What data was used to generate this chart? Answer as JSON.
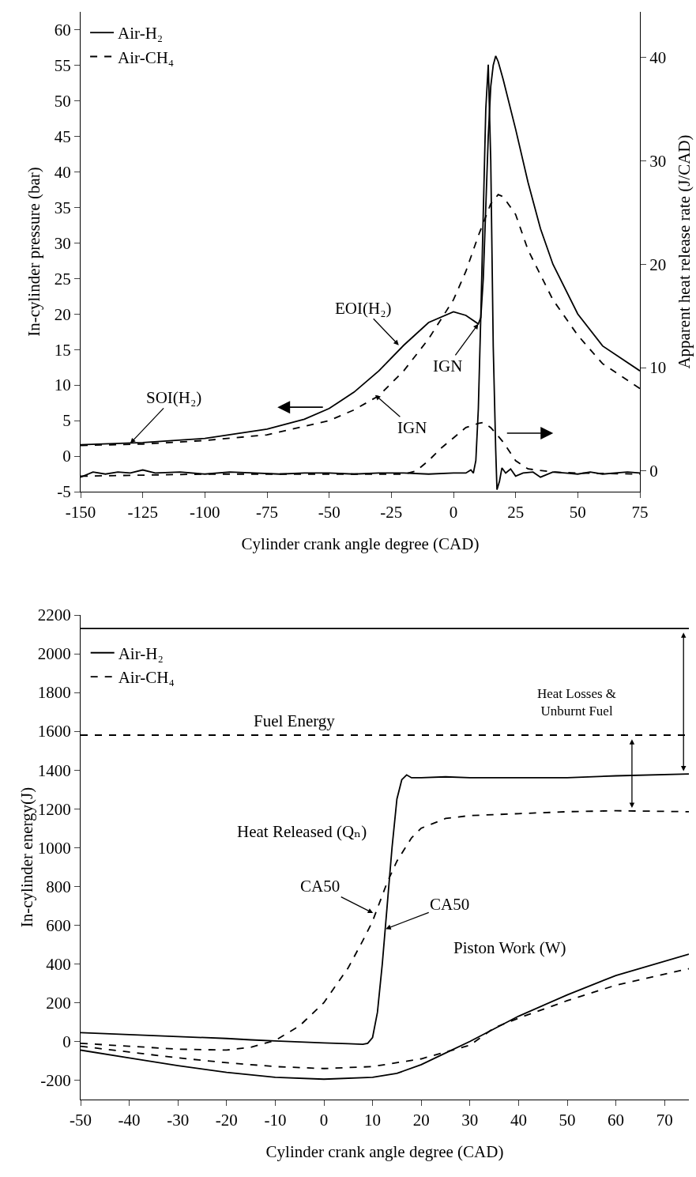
{
  "chart_data": [
    {
      "type": "line",
      "xlabel": "Cylinder crank angle degree (CAD)",
      "ylabel": "In-cylinder pressure (bar)",
      "y2label": "Apparent heat release rate (J/CAD)",
      "xlim": [
        -150,
        75
      ],
      "xticks": [
        -150,
        -125,
        -100,
        -75,
        -50,
        -25,
        0,
        25,
        50,
        75
      ],
      "ylim": [
        -5,
        62.5
      ],
      "yticks": [
        -5,
        0,
        5,
        10,
        15,
        20,
        25,
        30,
        35,
        40,
        45,
        50,
        55,
        60
      ],
      "y2lim": [
        -2,
        44.4
      ],
      "y2ticks": [
        0,
        10,
        20,
        30,
        40
      ],
      "legend": "top left",
      "marker": "none",
      "series": [
        {
          "name": "Air-H₂",
          "color": "#000000",
          "line_style": "solid",
          "x": [
            -150,
            -125,
            -100,
            -75,
            -60,
            -50,
            -40,
            -30,
            -20,
            -10,
            0,
            5,
            10,
            11,
            12,
            13,
            14,
            15,
            16,
            17,
            18,
            20,
            25,
            30,
            35,
            40,
            50,
            60,
            75
          ],
          "values": [
            1.6,
            1.9,
            2.5,
            3.8,
            5.2,
            6.7,
            9.0,
            12,
            15.6,
            18.8,
            20.3,
            19.8,
            18.6,
            19.5,
            25,
            35,
            45,
            52,
            55,
            56.3,
            55.5,
            53,
            46,
            38.5,
            32,
            27,
            20,
            15.5,
            12
          ]
        },
        {
          "name": "Air-CH₄",
          "color": "#000000",
          "line_style": "dashed",
          "x": [
            -150,
            -125,
            -100,
            -75,
            -50,
            -40,
            -30,
            -20,
            -10,
            0,
            5,
            10,
            15,
            18,
            20,
            25,
            30,
            40,
            50,
            60,
            75
          ],
          "values": [
            1.5,
            1.7,
            2.2,
            3.0,
            5.0,
            6.5,
            8.5,
            12,
            16.5,
            22,
            26,
            31,
            35.5,
            36.8,
            36.5,
            34,
            29,
            22,
            17,
            13,
            9.5
          ]
        },
        {
          "color": "#000000",
          "line_style": "solid",
          "axis": "y2",
          "x": [
            -150,
            -145,
            -140,
            -135,
            -130,
            -125,
            -120,
            -110,
            -100,
            -90,
            -80,
            -70,
            -60,
            -50,
            -40,
            -30,
            -20,
            -10,
            0,
            5,
            7,
            8,
            9,
            10,
            11,
            12,
            13,
            14,
            15,
            16,
            17,
            17.5,
            18.5,
            19.5,
            21,
            23,
            25,
            28,
            32,
            35,
            40,
            45,
            50,
            55,
            60,
            65,
            70,
            75
          ],
          "values": [
            -0.6,
            -0.1,
            -0.3,
            -0.1,
            -0.2,
            0.1,
            -0.2,
            -0.1,
            -0.3,
            -0.1,
            -0.2,
            -0.3,
            -0.2,
            -0.2,
            -0.3,
            -0.2,
            -0.2,
            -0.3,
            -0.2,
            -0.2,
            0.1,
            -0.2,
            1,
            6,
            15,
            25,
            35,
            39.3,
            30,
            12,
            2,
            -1.8,
            -1,
            0.3,
            -0.2,
            0.2,
            -0.5,
            -0.2,
            -0.1,
            -0.6,
            -0.1,
            -0.2,
            -0.3,
            -0.1,
            -0.3,
            -0.2,
            -0.1,
            -0.2
          ]
        },
        {
          "color": "#000000",
          "line_style": "dashed",
          "axis": "y2",
          "x": [
            -150,
            -100,
            -50,
            -20,
            -15,
            -10,
            -5,
            0,
            5,
            10,
            12,
            15,
            20,
            25,
            30,
            40,
            50,
            75
          ],
          "values": [
            -0.5,
            -0.3,
            -0.3,
            -0.3,
            0,
            1,
            2.2,
            3.2,
            4.2,
            4.6,
            4.7,
            4.2,
            2.8,
            1,
            0.2,
            -0.1,
            -0.2,
            -0.3
          ]
        }
      ],
      "annotations": [
        {
          "text": "SOI(H₂)",
          "x": -130,
          "y": 1.8
        },
        {
          "text": "EOI(H₂)",
          "x": -22,
          "y": 15.6
        },
        {
          "text": "IGN",
          "x": 10,
          "y": 18.6
        },
        {
          "text": "IGN",
          "x": -31.5,
          "y": 8.6
        }
      ]
    },
    {
      "type": "line",
      "xlabel": "Cylinder crank angle degree (CAD)",
      "ylabel": "In-cylinder energy(J)",
      "xlim": [
        -50,
        75
      ],
      "xticks": [
        -50,
        -40,
        -30,
        -20,
        -10,
        0,
        10,
        20,
        30,
        40,
        50,
        60,
        70
      ],
      "ylim": [
        -300,
        2200
      ],
      "yticks": [
        -200,
        0,
        200,
        400,
        600,
        800,
        1000,
        1200,
        1400,
        1600,
        1800,
        2000,
        2200
      ],
      "legend": "top left",
      "marker": "none",
      "series": [
        {
          "name": "Air-H₂",
          "color": "#000000",
          "line_style": "solid",
          "x": [
            -50,
            -40,
            -30,
            -20,
            -15,
            -10,
            0,
            5,
            8,
            9,
            10,
            11,
            12,
            13,
            14,
            15,
            16,
            17,
            18,
            20,
            25,
            30,
            40,
            50,
            60,
            75
          ],
          "values": [
            45,
            35,
            25,
            15,
            8,
            2,
            -8,
            -12,
            -15,
            -10,
            20,
            150,
            400,
            700,
            1000,
            1250,
            1350,
            1375,
            1360,
            1360,
            1365,
            1360,
            1360,
            1360,
            1370,
            1380
          ]
        },
        {
          "name": "Air-CH₄",
          "color": "#000000",
          "line_style": "dashed",
          "x": [
            -50,
            -40,
            -30,
            -20,
            -15,
            -10,
            -5,
            0,
            5,
            8,
            10,
            13,
            15,
            18,
            20,
            25,
            30,
            40,
            50,
            60,
            75
          ],
          "values": [
            -10,
            -25,
            -40,
            -45,
            -30,
            5,
            80,
            200,
            380,
            520,
            620,
            820,
            930,
            1050,
            1100,
            1150,
            1165,
            1175,
            1185,
            1190,
            1185
          ]
        },
        {
          "color": "#000000",
          "line_style": "solid",
          "x": [
            -50,
            -40,
            -30,
            -20,
            -10,
            0,
            10,
            15,
            20,
            25,
            30,
            35,
            40,
            50,
            60,
            75
          ],
          "values": [
            -45,
            -85,
            -125,
            -160,
            -185,
            -195,
            -185,
            -165,
            -120,
            -60,
            0,
            65,
            130,
            240,
            340,
            450
          ]
        },
        {
          "color": "#000000",
          "line_style": "dashed",
          "x": [
            -50,
            -40,
            -30,
            -20,
            -10,
            0,
            10,
            20,
            30,
            35,
            40,
            50,
            60,
            75
          ],
          "values": [
            -25,
            -55,
            -85,
            -110,
            -130,
            -140,
            -130,
            -90,
            -20,
            70,
            120,
            210,
            290,
            375
          ]
        }
      ],
      "ref_lines": [
        {
          "axis": "y",
          "value": 2130,
          "color": "#000000",
          "line_style": "solid"
        },
        {
          "axis": "y",
          "value": 1580,
          "color": "#000000",
          "line_style": "dashed"
        }
      ],
      "annotations": [
        "Fuel Energy",
        "Heat Released (Qₙ)",
        {
          "text": "CA50",
          "x": 10.1,
          "y": 662
        },
        {
          "text": "CA50",
          "x": 12.7,
          "y": 580
        },
        "Piston Work (W)",
        "Heat Losses &\nUnburnt Fuel"
      ]
    }
  ]
}
